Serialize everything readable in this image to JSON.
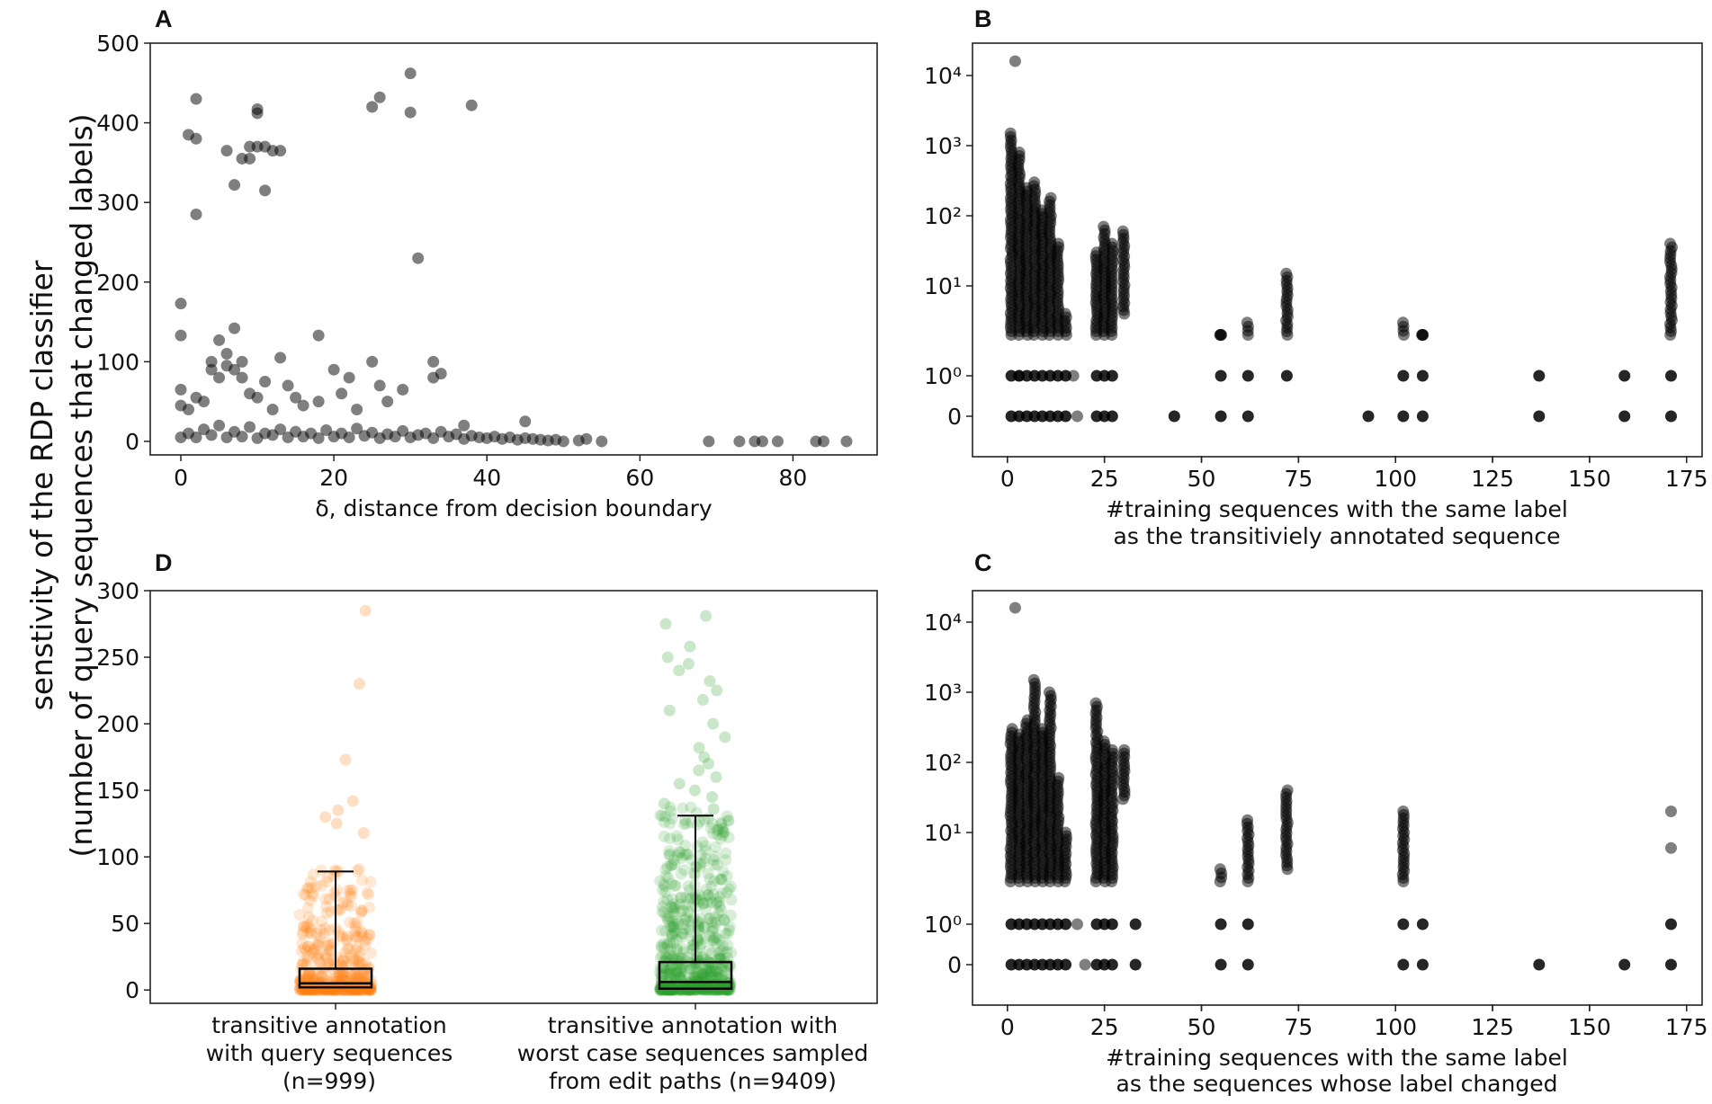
{
  "figure": {
    "shared_ylabel_line1": "senstivity of the RDP classifier",
    "shared_ylabel_line2": "(number of query sequences that changed labels)"
  },
  "chart_data": [
    {
      "panel": "A",
      "type": "scatter",
      "xlabel": "δ, distance from decision boundary",
      "ylabel": "",
      "xlim": [
        -4,
        91
      ],
      "ylim": [
        -17,
        500
      ],
      "x_ticks": [
        0,
        20,
        40,
        60,
        80
      ],
      "y_ticks": [
        0,
        100,
        200,
        300,
        400,
        500
      ],
      "color": "#000000",
      "alpha": 0.5,
      "points": [
        [
          2,
          430
        ],
        [
          1,
          385
        ],
        [
          2,
          380
        ],
        [
          2,
          285
        ],
        [
          6,
          365
        ],
        [
          7,
          322
        ],
        [
          8,
          355
        ],
        [
          9,
          355
        ],
        [
          9,
          370
        ],
        [
          10,
          370
        ],
        [
          10,
          417
        ],
        [
          10,
          412
        ],
        [
          11,
          370
        ],
        [
          11,
          315
        ],
        [
          12,
          365
        ],
        [
          13,
          365
        ],
        [
          26,
          432
        ],
        [
          25,
          420
        ],
        [
          30,
          462
        ],
        [
          30,
          413
        ],
        [
          38,
          422
        ],
        [
          31,
          230
        ],
        [
          0,
          173
        ],
        [
          0,
          133
        ],
        [
          0,
          65
        ],
        [
          0,
          45
        ],
        [
          1,
          40
        ],
        [
          2,
          55
        ],
        [
          3,
          50
        ],
        [
          4,
          90
        ],
        [
          4,
          100
        ],
        [
          5,
          80
        ],
        [
          5,
          127
        ],
        [
          6,
          110
        ],
        [
          6,
          95
        ],
        [
          7,
          90
        ],
        [
          7,
          142
        ],
        [
          8,
          100
        ],
        [
          8,
          80
        ],
        [
          9,
          60
        ],
        [
          10,
          55
        ],
        [
          11,
          75
        ],
        [
          12,
          40
        ],
        [
          13,
          105
        ],
        [
          14,
          70
        ],
        [
          15,
          55
        ],
        [
          16,
          45
        ],
        [
          18,
          133
        ],
        [
          18,
          50
        ],
        [
          20,
          90
        ],
        [
          21,
          60
        ],
        [
          22,
          80
        ],
        [
          23,
          40
        ],
        [
          25,
          100
        ],
        [
          26,
          70
        ],
        [
          27,
          50
        ],
        [
          29,
          65
        ],
        [
          33,
          100
        ],
        [
          33,
          80
        ],
        [
          34,
          85
        ],
        [
          37,
          20
        ],
        [
          45,
          25
        ],
        [
          0,
          5
        ],
        [
          1,
          10
        ],
        [
          2,
          5
        ],
        [
          3,
          15
        ],
        [
          4,
          8
        ],
        [
          5,
          20
        ],
        [
          6,
          5
        ],
        [
          7,
          12
        ],
        [
          8,
          6
        ],
        [
          9,
          18
        ],
        [
          10,
          4
        ],
        [
          11,
          10
        ],
        [
          12,
          8
        ],
        [
          13,
          15
        ],
        [
          14,
          5
        ],
        [
          15,
          12
        ],
        [
          16,
          6
        ],
        [
          17,
          10
        ],
        [
          18,
          4
        ],
        [
          19,
          14
        ],
        [
          20,
          6
        ],
        [
          21,
          10
        ],
        [
          22,
          5
        ],
        [
          23,
          16
        ],
        [
          24,
          7
        ],
        [
          25,
          11
        ],
        [
          26,
          4
        ],
        [
          27,
          9
        ],
        [
          28,
          6
        ],
        [
          29,
          13
        ],
        [
          30,
          5
        ],
        [
          31,
          8
        ],
        [
          32,
          10
        ],
        [
          33,
          4
        ],
        [
          34,
          12
        ],
        [
          35,
          6
        ],
        [
          36,
          9
        ],
        [
          37,
          3
        ],
        [
          38,
          7
        ],
        [
          39,
          5
        ],
        [
          40,
          4
        ],
        [
          41,
          6
        ],
        [
          42,
          3
        ],
        [
          43,
          5
        ],
        [
          44,
          2
        ],
        [
          45,
          4
        ],
        [
          46,
          3
        ],
        [
          47,
          2
        ],
        [
          48,
          1
        ],
        [
          49,
          2
        ],
        [
          50,
          0
        ],
        [
          52,
          1
        ],
        [
          53,
          3
        ],
        [
          55,
          0
        ],
        [
          69,
          0
        ],
        [
          73,
          0
        ],
        [
          75,
          0
        ],
        [
          76,
          0
        ],
        [
          78,
          0
        ],
        [
          83,
          0
        ],
        [
          84,
          0
        ],
        [
          87,
          0
        ]
      ]
    },
    {
      "panel": "B",
      "type": "scatter",
      "xlabel_line1": "#training sequences with the same label",
      "xlabel_line2": "as the transitiviely annotated sequence",
      "xlim": [
        -9,
        179
      ],
      "x_ticks": [
        0,
        25,
        50,
        75,
        100,
        125,
        150,
        175
      ],
      "y_ticks": [
        {
          "value": 0,
          "label": "0"
        },
        {
          "value": 1,
          "label": "10⁰"
        },
        {
          "value": 10,
          "label": "10¹"
        },
        {
          "value": 100,
          "label": "10²"
        },
        {
          "value": 1000,
          "label": "10³"
        },
        {
          "value": 10000,
          "label": "10⁴"
        }
      ],
      "yscale": "symlog",
      "color": "#000000",
      "alpha": 0.5,
      "columns": [
        {
          "x": 1,
          "min": 0,
          "max": 1500
        },
        {
          "x": 3,
          "min": 0,
          "max": 800
        },
        {
          "x": 5,
          "min": 0,
          "max": 250
        },
        {
          "x": 7,
          "min": 0,
          "max": 300
        },
        {
          "x": 9,
          "min": 0,
          "max": 120
        },
        {
          "x": 11,
          "min": 0,
          "max": 180
        },
        {
          "x": 13,
          "min": 0,
          "max": 40
        },
        {
          "x": 15,
          "min": 0,
          "max": 4
        },
        {
          "x": 23,
          "min": 0,
          "max": 30
        },
        {
          "x": 25,
          "min": 0,
          "max": 70
        },
        {
          "x": 27,
          "min": 0,
          "max": 40
        },
        {
          "x": 30,
          "min": 4,
          "max": 60
        },
        {
          "x": 43,
          "min": 0,
          "max": 0
        },
        {
          "x": 55,
          "min": 0,
          "max": 2
        },
        {
          "x": 62,
          "min": 0,
          "max": 3
        },
        {
          "x": 72,
          "min": 1,
          "max": 15
        },
        {
          "x": 93,
          "min": 0,
          "max": 0
        },
        {
          "x": 102,
          "min": 0,
          "max": 3
        },
        {
          "x": 107,
          "min": 0,
          "max": 2
        },
        {
          "x": 137,
          "min": 0,
          "max": 1
        },
        {
          "x": 159,
          "min": 0,
          "max": 1
        },
        {
          "x": 171,
          "min": 0,
          "max": 40
        }
      ],
      "extra_points": [
        [
          2,
          16000
        ],
        [
          17,
          1
        ],
        [
          18,
          0
        ],
        [
          3,
          1
        ]
      ]
    },
    {
      "panel": "C",
      "type": "scatter",
      "xlabel_line1": "#training sequences with the same label",
      "xlabel_line2": "as the sequences whose label changed",
      "xlim": [
        -9,
        179
      ],
      "x_ticks": [
        0,
        25,
        50,
        75,
        100,
        125,
        150,
        175
      ],
      "y_ticks": [
        {
          "value": 0,
          "label": "0"
        },
        {
          "value": 1,
          "label": "10⁰"
        },
        {
          "value": 10,
          "label": "10¹"
        },
        {
          "value": 100,
          "label": "10²"
        },
        {
          "value": 1000,
          "label": "10³"
        },
        {
          "value": 10000,
          "label": "10⁴"
        }
      ],
      "yscale": "symlog",
      "color": "#000000",
      "alpha": 0.5,
      "columns": [
        {
          "x": 1,
          "min": 0,
          "max": 300
        },
        {
          "x": 3,
          "min": 0,
          "max": 250
        },
        {
          "x": 5,
          "min": 0,
          "max": 400
        },
        {
          "x": 7,
          "min": 0,
          "max": 1500
        },
        {
          "x": 9,
          "min": 0,
          "max": 300
        },
        {
          "x": 11,
          "min": 0,
          "max": 1000
        },
        {
          "x": 13,
          "min": 0,
          "max": 60
        },
        {
          "x": 15,
          "min": 0,
          "max": 10
        },
        {
          "x": 23,
          "min": 0,
          "max": 700
        },
        {
          "x": 25,
          "min": 0,
          "max": 200
        },
        {
          "x": 27,
          "min": 0,
          "max": 150
        },
        {
          "x": 30,
          "min": 30,
          "max": 150
        },
        {
          "x": 33,
          "min": 0,
          "max": 1
        },
        {
          "x": 55,
          "min": 0,
          "max": 3
        },
        {
          "x": 62,
          "min": 0,
          "max": 15
        },
        {
          "x": 72,
          "min": 3,
          "max": 40
        },
        {
          "x": 102,
          "min": 0,
          "max": 20
        },
        {
          "x": 107,
          "min": 0,
          "max": 1
        },
        {
          "x": 137,
          "min": 0,
          "max": 0
        },
        {
          "x": 159,
          "min": 0,
          "max": 0
        },
        {
          "x": 171,
          "min": 0,
          "max": 1
        }
      ],
      "extra_points": [
        [
          2,
          16000
        ],
        [
          171,
          20
        ],
        [
          171,
          6
        ],
        [
          18,
          1
        ],
        [
          20,
          0
        ]
      ]
    },
    {
      "panel": "D",
      "type": "box+strip",
      "ylim": [
        -10,
        300
      ],
      "y_ticks": [
        0,
        50,
        100,
        150,
        200,
        250,
        300
      ],
      "groups": [
        {
          "label_line1": "transitive annotation",
          "label_line2": "with query sequences",
          "label_line3": "(n=999)",
          "color": "#ff7f0e",
          "box": {
            "q1": 2,
            "median": 5,
            "q3": 16,
            "whisker_low": 0,
            "whisker_high": 89
          },
          "outliers": [
            285,
            230,
            173,
            142,
            135,
            130,
            125,
            118
          ]
        },
        {
          "label_line1": "transitive annotation with",
          "label_line2": "worst case sequences sampled",
          "label_line3": "from edit paths (n=9409)",
          "color": "#2ca02c",
          "box": {
            "q1": 1,
            "median": 6,
            "q3": 21,
            "whisker_low": 0,
            "whisker_high": 131
          },
          "outliers": [
            281,
            275,
            258,
            250,
            245,
            240,
            232,
            225,
            218,
            210,
            200,
            190,
            182,
            175,
            170,
            165,
            160,
            155,
            150,
            145,
            140,
            136
          ]
        }
      ]
    }
  ]
}
